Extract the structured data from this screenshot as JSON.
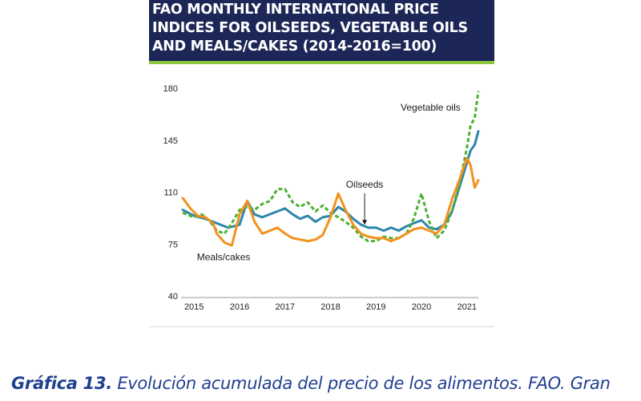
{
  "title_lines": [
    "FAO MONTHLY INTERNATIONAL PRICE",
    "INDICES FOR OILSEEDS, VEGETABLE OILS",
    "AND MEALS/CAKES (2014-2016=100)"
  ],
  "caption": {
    "lead": "Gráfica 13.",
    "text": " Evolución acumulada del precio de los alimentos. FAO. Gran"
  },
  "colors": {
    "banner": "#1d2757",
    "banner_rule": "#8dc63f",
    "caption": "#1f3f8f"
  },
  "chart_data": {
    "type": "line",
    "ylim": [
      40,
      180
    ],
    "yticks": [
      40,
      75,
      110,
      145,
      180
    ],
    "xlim": [
      2014.75,
      2021.25
    ],
    "xticks": [
      2015,
      2016,
      2017,
      2018,
      2019,
      2020,
      2021
    ],
    "grid": false,
    "annotations": [
      {
        "text": "Vegetable oils",
        "x": 2020.2,
        "y": 165
      },
      {
        "text": "Oilseeds",
        "x": 2018.75,
        "y": 113,
        "arrow_to_y": 88
      },
      {
        "text": "Meals/cakes",
        "x": 2015.65,
        "y": 64
      }
    ],
    "series": [
      {
        "name": "Oilseeds",
        "color": "#2e86ab",
        "dash": "solid",
        "points": [
          [
            2014.75,
            98
          ],
          [
            2015.0,
            94
          ],
          [
            2015.25,
            92
          ],
          [
            2015.5,
            89
          ],
          [
            2015.75,
            86
          ],
          [
            2016.0,
            88
          ],
          [
            2016.17,
            104
          ],
          [
            2016.33,
            95
          ],
          [
            2016.5,
            93
          ],
          [
            2016.75,
            96
          ],
          [
            2017.0,
            99
          ],
          [
            2017.17,
            95
          ],
          [
            2017.33,
            92
          ],
          [
            2017.5,
            94
          ],
          [
            2017.67,
            90
          ],
          [
            2017.83,
            93
          ],
          [
            2018.0,
            94
          ],
          [
            2018.17,
            100
          ],
          [
            2018.33,
            97
          ],
          [
            2018.5,
            92
          ],
          [
            2018.67,
            88
          ],
          [
            2018.83,
            86
          ],
          [
            2019.0,
            86
          ],
          [
            2019.17,
            84
          ],
          [
            2019.33,
            86
          ],
          [
            2019.5,
            84
          ],
          [
            2019.67,
            87
          ],
          [
            2019.83,
            89
          ],
          [
            2020.0,
            91
          ],
          [
            2020.17,
            86
          ],
          [
            2020.33,
            85
          ],
          [
            2020.5,
            88
          ],
          [
            2020.67,
            97
          ],
          [
            2020.83,
            113
          ],
          [
            2020.92,
            122
          ],
          [
            2021.0,
            130
          ],
          [
            2021.08,
            138
          ],
          [
            2021.17,
            142
          ],
          [
            2021.25,
            151
          ]
        ]
      },
      {
        "name": "Vegetable oils",
        "color": "#4db033",
        "dash": "dashed",
        "points": [
          [
            2014.75,
            96
          ],
          [
            2015.0,
            93
          ],
          [
            2015.17,
            95
          ],
          [
            2015.33,
            91
          ],
          [
            2015.5,
            84
          ],
          [
            2015.67,
            82
          ],
          [
            2015.83,
            89
          ],
          [
            2016.0,
            98
          ],
          [
            2016.17,
            100
          ],
          [
            2016.33,
            98
          ],
          [
            2016.5,
            102
          ],
          [
            2016.67,
            104
          ],
          [
            2016.83,
            112
          ],
          [
            2017.0,
            112
          ],
          [
            2017.17,
            103
          ],
          [
            2017.33,
            100
          ],
          [
            2017.5,
            103
          ],
          [
            2017.67,
            97
          ],
          [
            2017.83,
            101
          ],
          [
            2018.0,
            96
          ],
          [
            2018.17,
            93
          ],
          [
            2018.33,
            90
          ],
          [
            2018.5,
            86
          ],
          [
            2018.67,
            80
          ],
          [
            2018.83,
            77
          ],
          [
            2019.0,
            77
          ],
          [
            2019.17,
            80
          ],
          [
            2019.33,
            79
          ],
          [
            2019.5,
            79
          ],
          [
            2019.67,
            82
          ],
          [
            2019.83,
            92
          ],
          [
            2020.0,
            109
          ],
          [
            2020.17,
            90
          ],
          [
            2020.33,
            79
          ],
          [
            2020.5,
            84
          ],
          [
            2020.67,
            97
          ],
          [
            2020.83,
            115
          ],
          [
            2021.0,
            140
          ],
          [
            2021.08,
            155
          ],
          [
            2021.17,
            160
          ],
          [
            2021.25,
            178
          ]
        ]
      },
      {
        "name": "Meals/cakes",
        "color": "#f2921d",
        "dash": "solid",
        "points": [
          [
            2014.75,
            106
          ],
          [
            2014.92,
            99
          ],
          [
            2015.08,
            94
          ],
          [
            2015.25,
            93
          ],
          [
            2015.42,
            89
          ],
          [
            2015.5,
            82
          ],
          [
            2015.67,
            76
          ],
          [
            2015.83,
            74
          ],
          [
            2016.0,
            95
          ],
          [
            2016.17,
            104
          ],
          [
            2016.33,
            90
          ],
          [
            2016.5,
            82
          ],
          [
            2016.67,
            84
          ],
          [
            2016.83,
            86
          ],
          [
            2017.0,
            82
          ],
          [
            2017.17,
            79
          ],
          [
            2017.33,
            78
          ],
          [
            2017.5,
            77
          ],
          [
            2017.67,
            78
          ],
          [
            2017.83,
            81
          ],
          [
            2018.0,
            93
          ],
          [
            2018.17,
            109
          ],
          [
            2018.33,
            98
          ],
          [
            2018.5,
            88
          ],
          [
            2018.67,
            82
          ],
          [
            2018.83,
            80
          ],
          [
            2019.0,
            79
          ],
          [
            2019.17,
            79
          ],
          [
            2019.33,
            77
          ],
          [
            2019.5,
            79
          ],
          [
            2019.67,
            82
          ],
          [
            2019.83,
            85
          ],
          [
            2020.0,
            86
          ],
          [
            2020.17,
            84
          ],
          [
            2020.33,
            82
          ],
          [
            2020.5,
            88
          ],
          [
            2020.67,
            105
          ],
          [
            2020.83,
            118
          ],
          [
            2021.0,
            133
          ],
          [
            2021.08,
            128
          ],
          [
            2021.17,
            113
          ],
          [
            2021.25,
            118
          ]
        ]
      }
    ]
  }
}
